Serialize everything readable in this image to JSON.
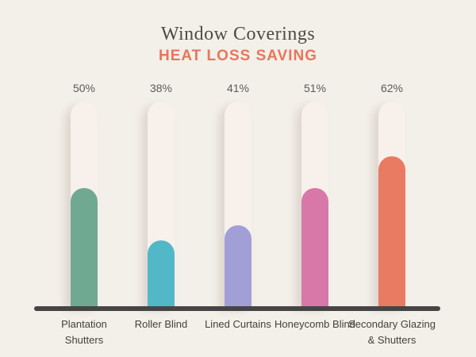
{
  "page": {
    "background_color": "#F3EFE9"
  },
  "chart_data": {
    "type": "bar",
    "title": "Window Coverings",
    "subtitle": "HEAT LOSS SAVING",
    "title_color": "#4E4B46",
    "subtitle_color": "#E8755B",
    "categories": [
      "Plantation Shutters",
      "Roller Blind",
      "Lined Curtains",
      "Honeycomb Blind",
      "Secondary Glazing & Shutters"
    ],
    "category_lines": [
      [
        "Plantation",
        "Shutters"
      ],
      [
        "Roller Blind"
      ],
      [
        "Lined Curtains"
      ],
      [
        "Honeycomb Blind"
      ],
      [
        "Secondary Glazing",
        "& Shutters"
      ]
    ],
    "values": [
      50,
      38,
      41,
      51,
      62
    ],
    "value_labels": [
      "50%",
      "38%",
      "41%",
      "51%",
      "62%"
    ],
    "unit": "%",
    "ylim": [
      0,
      100
    ],
    "grid": false,
    "legend": false,
    "orientation": "vertical",
    "bar_colors": [
      "#6FA992",
      "#52B7C7",
      "#A29ED6",
      "#D778A9",
      "#E87B62"
    ],
    "track_color": "#F7F0EB",
    "axis_line_color": "#454545",
    "value_label_color": "#5B5B5B",
    "category_label_color": "#454239",
    "display_fill_fractions": [
      0.578,
      0.322,
      0.395,
      0.578,
      0.733
    ]
  }
}
